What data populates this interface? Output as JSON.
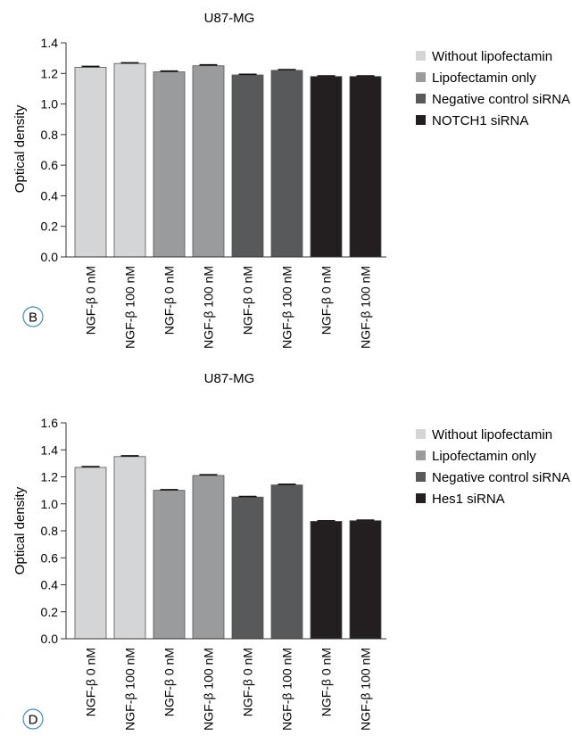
{
  "chart_data": [
    {
      "type": "bar",
      "panel_label": "B",
      "title": "U87-MG",
      "ylabel": "Optical density",
      "xlabel": "",
      "ylim": [
        0,
        1.4
      ],
      "yticks": [
        "0.0",
        "0.2",
        "0.4",
        "0.6",
        "0.8",
        "1.0",
        "1.2",
        "1.4"
      ],
      "ytick_values": [
        0,
        0.2,
        0.4,
        0.6,
        0.8,
        1.0,
        1.2,
        1.4
      ],
      "categories": [
        "NGF-β 0 nM",
        "NGF-β 100 nM",
        "NGF-β 0 nM",
        "NGF-β 100 nM",
        "NGF-β 0 nM",
        "NGF-β 100 nM",
        "NGF-β 0 nM",
        "NGF-β 100 nM"
      ],
      "values": [
        1.24,
        1.265,
        1.21,
        1.25,
        1.19,
        1.22,
        1.18,
        1.18
      ],
      "errors": [
        0.006,
        0.004,
        0.005,
        0.006,
        0.004,
        0.005,
        0.004,
        0.004
      ],
      "bar_groups": [
        0,
        0,
        1,
        1,
        2,
        2,
        3,
        3
      ],
      "legend": [
        {
          "label": "Without lipofectamin",
          "color": "#d4d5d7"
        },
        {
          "label": "Lipofectamin only",
          "color": "#9a9b9d"
        },
        {
          "label": "Negative control siRNA",
          "color": "#58595b"
        },
        {
          "label": "NOTCH1 siRNA",
          "color": "#231f20"
        }
      ],
      "legend_position": "right",
      "grid": false
    },
    {
      "type": "bar",
      "panel_label": "D",
      "title": "U87-MG",
      "ylabel": "Optical density",
      "xlabel": "",
      "ylim": [
        0,
        1.6
      ],
      "yticks": [
        "0.0",
        "0.2",
        "0.4",
        "0.6",
        "0.8",
        "1.0",
        "1.2",
        "1.4",
        "1.6"
      ],
      "ytick_values": [
        0,
        0.2,
        0.4,
        0.6,
        0.8,
        1.0,
        1.2,
        1.4,
        1.6
      ],
      "categories": [
        "NGF-β 0 nM",
        "NGF-β 100 nM",
        "NGF-β 0 nM",
        "NGF-β 100 nM",
        "NGF-β 0 nM",
        "NGF-β 100 nM",
        "NGF-β 0 nM",
        "NGF-β 100 nM"
      ],
      "values": [
        1.27,
        1.35,
        1.1,
        1.21,
        1.05,
        1.14,
        0.87,
        0.875
      ],
      "errors": [
        0.006,
        0.006,
        0.005,
        0.005,
        0.004,
        0.005,
        0.004,
        0.004
      ],
      "bar_groups": [
        0,
        0,
        1,
        1,
        2,
        2,
        3,
        3
      ],
      "legend": [
        {
          "label": "Without lipofectamin",
          "color": "#d4d5d7"
        },
        {
          "label": "Lipofectamin only",
          "color": "#9a9b9d"
        },
        {
          "label": "Negative control siRNA",
          "color": "#58595b"
        },
        {
          "label": "Hes1 siRNA",
          "color": "#231f20"
        }
      ],
      "legend_position": "right",
      "grid": false
    }
  ]
}
